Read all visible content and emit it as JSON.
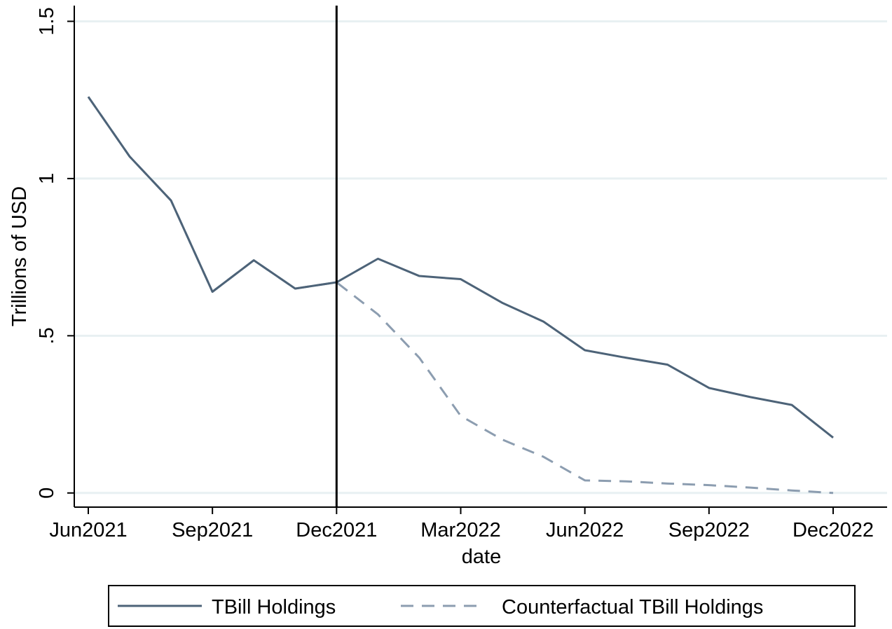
{
  "chart_data": {
    "type": "line",
    "categories": [
      "Jun2021",
      null,
      null,
      "Sep2021",
      null,
      null,
      "Dec2021",
      null,
      null,
      "Mar2022",
      null,
      null,
      "Jun2022",
      null,
      null,
      "Sep2022",
      null,
      null,
      "Dec2022"
    ],
    "series": [
      {
        "name": "TBill Holdings",
        "color": "#4d6378",
        "dash": false,
        "values": [
          1.26,
          1.07,
          0.93,
          0.64,
          0.74,
          0.65,
          0.67,
          0.745,
          0.69,
          0.68,
          0.605,
          0.545,
          0.454,
          0.43,
          0.408,
          0.334,
          0.305,
          0.28,
          0.176
        ]
      },
      {
        "name": "Counterfactual TBill Holdings",
        "color": "#8c9db0",
        "dash": true,
        "values": [
          1.26,
          1.07,
          0.93,
          0.64,
          0.74,
          0.65,
          0.67,
          0.568,
          0.43,
          0.245,
          0.17,
          0.115,
          0.04,
          0.037,
          0.03,
          0.025,
          0.017,
          0.008,
          0.0
        ]
      }
    ],
    "xlabel": "date",
    "ylabel": "Trillions of USD",
    "ylim": [
      -0.045,
      1.55
    ],
    "yticks": [
      0,
      {
        "value": 0.5,
        "label": ".5"
      },
      1,
      1.5
    ],
    "grid": true,
    "xline": "Dec2021",
    "legend": "bottom"
  }
}
